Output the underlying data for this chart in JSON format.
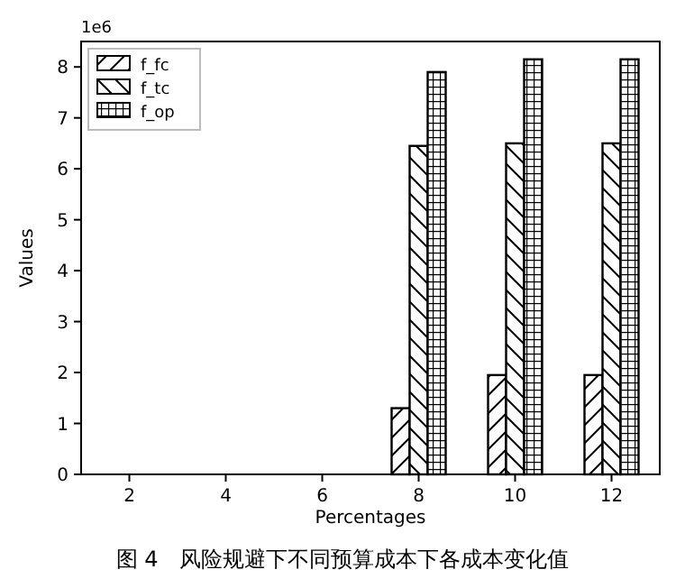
{
  "chart_data": {
    "type": "bar",
    "title": "图 4　风险规避下不同预算成本下各成本变化值",
    "xlabel": "Percentages",
    "ylabel": "Values",
    "annotations": [
      "1e6"
    ],
    "categories": [
      "2",
      "4",
      "6",
      "8",
      "10",
      "12"
    ],
    "series": [
      {
        "name": "f_fc",
        "color": "#000000",
        "values": [
          0,
          0,
          0,
          1.3,
          1.95,
          1.95
        ]
      },
      {
        "name": "f_tc",
        "color": "#000000",
        "values": [
          0,
          0,
          0,
          6.45,
          6.5,
          6.5
        ]
      },
      {
        "name": "f_op",
        "color": "#000000",
        "values": [
          0,
          0,
          0,
          7.9,
          8.15,
          8.15
        ]
      }
    ],
    "ylim": [
      0,
      8.5
    ],
    "yticks": [
      0,
      1,
      2,
      3,
      4,
      5,
      6,
      7,
      8
    ],
    "legend": "top left",
    "grid": false
  }
}
